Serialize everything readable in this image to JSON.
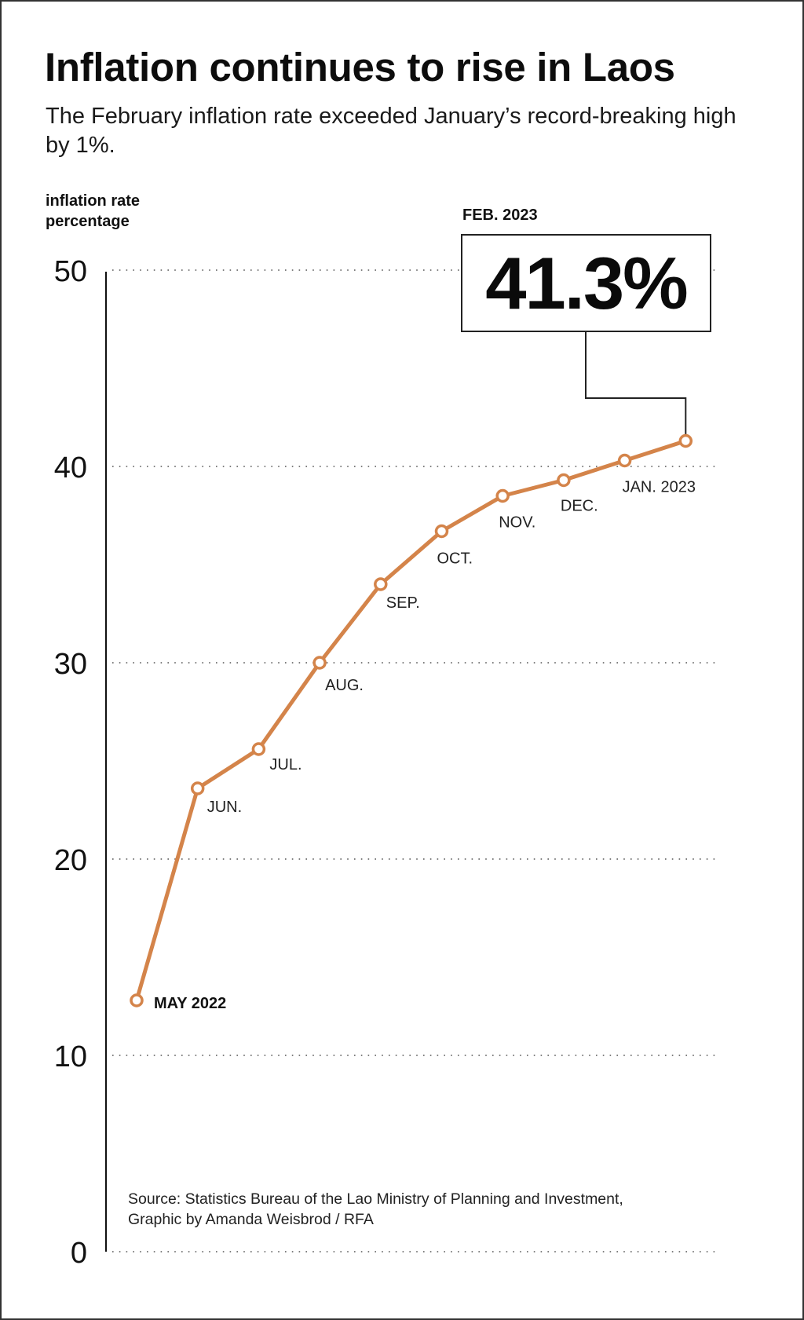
{
  "header": {
    "title": "Inflation continues to rise in Laos",
    "subtitle": "The February inflation rate exceeded January’s record-breaking high by 1%."
  },
  "axis": {
    "ylabel_line1": "inflation rate",
    "ylabel_line2": "percentage"
  },
  "callout": {
    "label": "FEB. 2023",
    "value": "41.3%"
  },
  "source": {
    "line1": "Source: Statistics Bureau of the Lao Ministry of Planning and Investment,",
    "line2": "Graphic by Amanda Weisbrod / RFA"
  },
  "colors": {
    "line": "#D4844A",
    "marker_fill": "#ffffff",
    "grid": "#555555",
    "axis": "#111111",
    "text": "#111111"
  },
  "chart_data": {
    "type": "line",
    "title": "Inflation continues to rise in Laos",
    "subtitle": "The February inflation rate exceeded January’s record-breaking high by 1%.",
    "xlabel": "",
    "ylabel": "inflation rate percentage",
    "categories": [
      "MAY 2022",
      "JUN.",
      "JUL.",
      "AUG.",
      "SEP.",
      "OCT.",
      "NOV.",
      "DEC.",
      "JAN. 2023",
      "FEB. 2023"
    ],
    "series": [
      {
        "name": "Inflation rate (%)",
        "values": [
          12.8,
          23.6,
          25.6,
          30.0,
          34.0,
          36.7,
          38.5,
          39.3,
          40.3,
          41.3
        ]
      }
    ],
    "ylim": [
      0,
      50
    ],
    "yticks": [
      0,
      10,
      20,
      30,
      40,
      50
    ],
    "grid": "horizontal dotted",
    "legend": "none",
    "annotations": [
      {
        "category": "FEB. 2023",
        "label": "FEB. 2023",
        "text": "41.3%"
      }
    ],
    "source": "Statistics Bureau of the Lao Ministry of Planning and Investment, Graphic by Amanda Weisbrod / RFA"
  }
}
